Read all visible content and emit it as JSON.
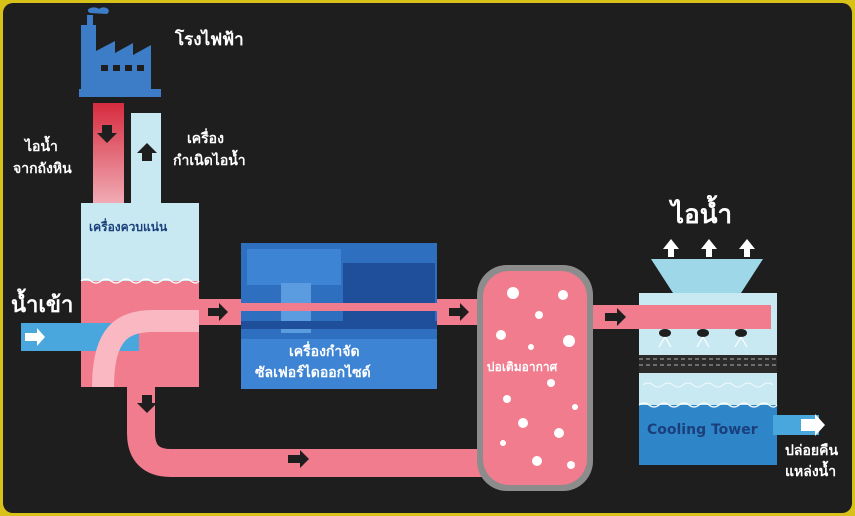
{
  "labels": {
    "power_plant": "โรงไฟฟ้า",
    "steam_from_boiler": "ไอน้ำ",
    "steam_from_boiler_2": "จากถังหิน",
    "steam_generator": "เครื่อง",
    "steam_generator_2": "กำเนิดไอน้ำ",
    "condenser": "เครื่องควบแน่น",
    "water_in": "น้ำเข้า",
    "scrubber": "เครื่องกำจัด",
    "scrubber_2": "ซัลเฟอร์ไดออกไซด์",
    "aeration_pond": "บ่อเติมอากาศ",
    "steam_out": "ไอน้ำ",
    "cooling_tower": "Cooling Tower",
    "discharge": "ปล่อยคืน",
    "discharge_2": "แหล่งน้ำ"
  },
  "colors": {
    "background": "#1e1e1e",
    "pink_water": "#f07c8e",
    "light_blue": "#c8e8f2",
    "blue_water": "#49a7dd",
    "dark_blue": "#1f5aa8",
    "factory_blue": "#3d7cc6"
  }
}
